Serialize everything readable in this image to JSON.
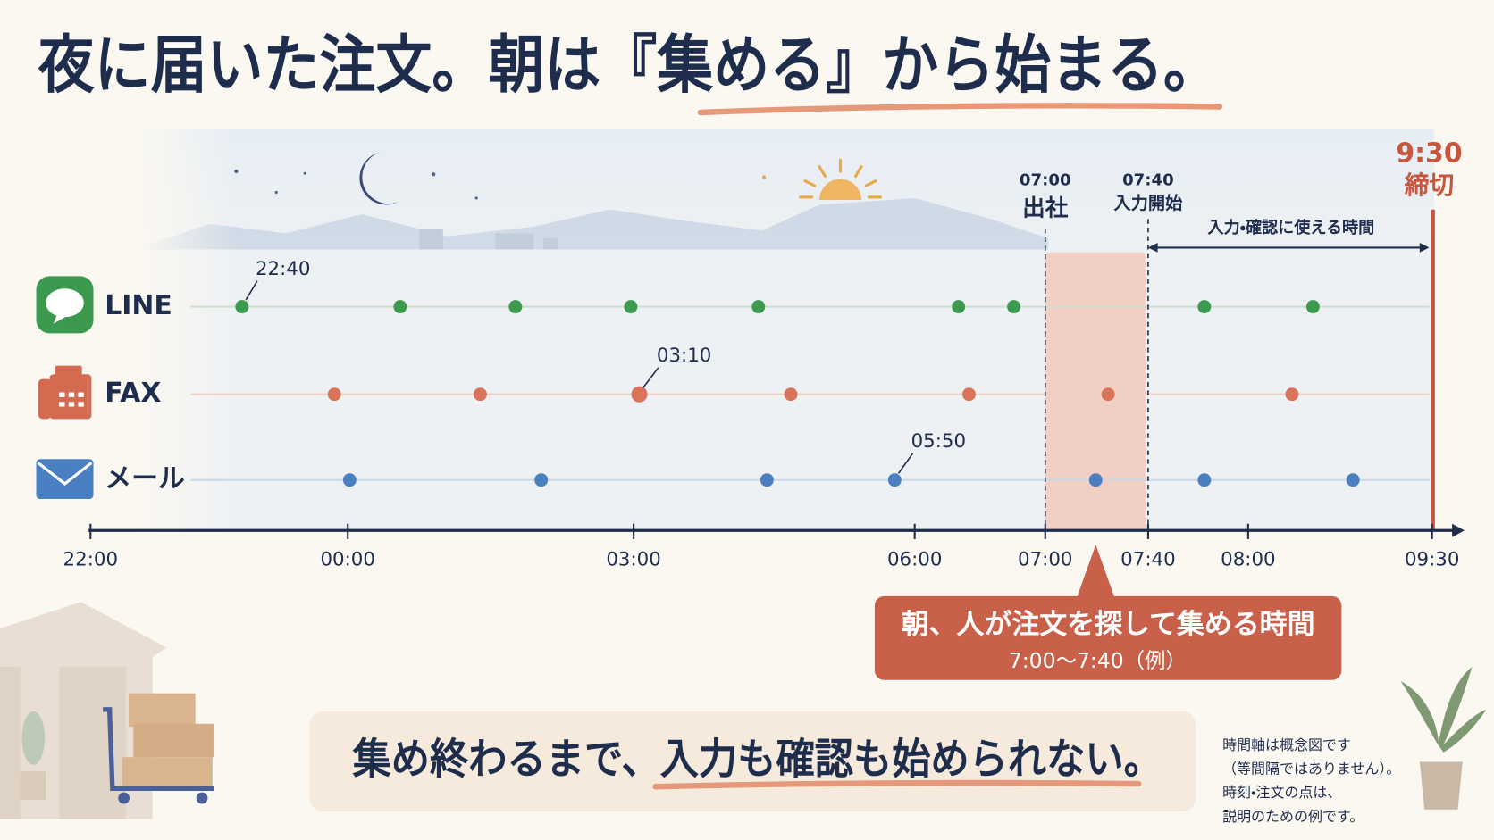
{
  "title": {
    "before": "夜に届いた注文。朝は",
    "highlight": "『集める』",
    "after": "から始まる。"
  },
  "timeline": {
    "axis_labels": [
      "22:00",
      "00:00",
      "03:00",
      "06:00",
      "07:00",
      "07:40",
      "08:00",
      "09:30"
    ],
    "channels": [
      {
        "name": "LINE",
        "label_time": "22:40"
      },
      {
        "name": "FAX",
        "label_time": "03:10"
      },
      {
        "name": "メール",
        "label_time": "05:50"
      }
    ],
    "markers": [
      {
        "time": "07:00",
        "label": "出社"
      },
      {
        "time": "07:40",
        "label": "入力開始"
      }
    ],
    "deadline": {
      "time": "9:30",
      "label": "締切"
    },
    "span_label": "入力・確認に使える時間"
  },
  "callout": {
    "title": "朝、人が注文を探して集める時間",
    "subtitle": "7:00〜7:40（例）"
  },
  "message": {
    "before": "集め終わるまで、",
    "highlight": "入力も確認も始められない。"
  },
  "note": [
    "時間軸は概念図です",
    "（等間隔ではありません）。",
    "時刻・注文の点は、",
    "説明のための例です。"
  ]
}
